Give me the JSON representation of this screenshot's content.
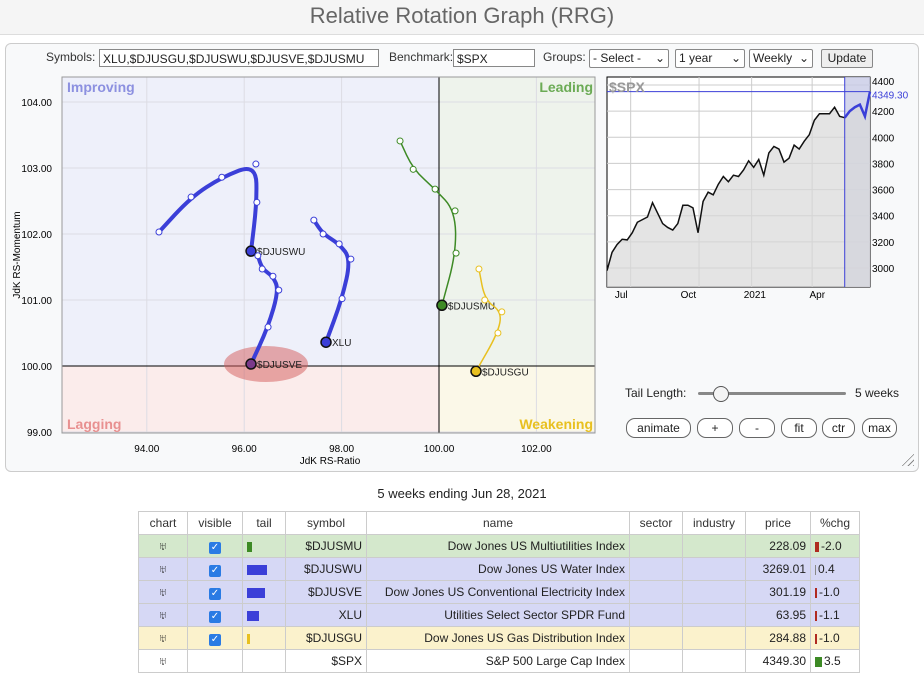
{
  "title": "Relative Rotation Graph (RRG)",
  "controls": {
    "symbols_label": "Symbols:",
    "symbols_value": "XLU,$DJUSGU,$DJUSWU,$DJUSVE,$DJUSMU",
    "benchmark_label": "Benchmark:",
    "benchmark_value": "$SPX",
    "groups_label": "Groups:",
    "groups_value": "- Select -",
    "period_value": "1 year",
    "interval_value": "Weekly",
    "update_label": "Update"
  },
  "rrg": {
    "quadrants": {
      "improving": "Improving",
      "leading": "Leading",
      "lagging": "Lagging",
      "weakening": "Weakening"
    },
    "xlabel": "JdK RS-Ratio",
    "ylabel": "JdK RS-Momentum",
    "xticks": [
      "94.00",
      "96.00",
      "98.00",
      "100.00",
      "102.00"
    ],
    "yticks": [
      "104.00",
      "103.00",
      "102.00",
      "101.00",
      "100.00",
      "99.00"
    ],
    "series": [
      {
        "name": "$DJUSWU",
        "color": "#3b3fd8",
        "width": 4,
        "points": [
          [
            94.25,
            102.03
          ],
          [
            94.91,
            102.56
          ],
          [
            95.54,
            102.86
          ],
          [
            96.24,
            103.06
          ],
          [
            96.26,
            102.48
          ],
          [
            96.14,
            101.74
          ]
        ]
      },
      {
        "name": "$DJUSVE",
        "color": "#3b3fd8",
        "width": 4,
        "points": [
          [
            96.28,
            101.67
          ],
          [
            96.37,
            101.47
          ],
          [
            96.59,
            101.36
          ],
          [
            96.71,
            101.15
          ],
          [
            96.49,
            100.59
          ],
          [
            96.14,
            100.03
          ]
        ],
        "headColor": "#7a3a8a",
        "highlight": true
      },
      {
        "name": "XLU",
        "color": "#3b3fd8",
        "width": 4,
        "points": [
          [
            97.43,
            102.21
          ],
          [
            97.62,
            102.0
          ],
          [
            97.95,
            101.85
          ],
          [
            98.19,
            101.62
          ],
          [
            98.01,
            101.02
          ],
          [
            97.68,
            100.36
          ]
        ]
      },
      {
        "name": "$DJUSMU",
        "color": "#3d8a25",
        "width": 1.5,
        "points": [
          [
            99.2,
            103.41
          ],
          [
            99.47,
            102.98
          ],
          [
            99.92,
            102.68
          ],
          [
            100.33,
            102.35
          ],
          [
            100.35,
            101.71
          ],
          [
            100.06,
            100.92
          ]
        ]
      },
      {
        "name": "$DJUSGU",
        "color": "#e8c020",
        "width": 1.5,
        "points": [
          [
            100.82,
            101.47
          ],
          [
            100.94,
            101.0
          ],
          [
            101.29,
            100.82
          ],
          [
            101.21,
            100.5
          ],
          [
            100.76,
            99.92
          ]
        ]
      }
    ]
  },
  "spx": {
    "label": "$SPX",
    "last": "4349.30",
    "yticks": [
      "4400",
      "4200",
      "4000",
      "3800",
      "3600",
      "3400",
      "3200",
      "3000"
    ],
    "xticks": [
      "Jul",
      "Oct",
      "2021",
      "Apr"
    ],
    "values": [
      2980,
      3120,
      3180,
      3220,
      3215,
      3270,
      3350,
      3370,
      3390,
      3500,
      3420,
      3340,
      3310,
      3290,
      3340,
      3480,
      3480,
      3460,
      3270,
      3510,
      3580,
      3560,
      3640,
      3700,
      3660,
      3710,
      3700,
      3750,
      3820,
      3770,
      3830,
      3710,
      3880,
      3930,
      3910,
      3810,
      3840,
      3940,
      3910,
      3970,
      4020,
      4130,
      4180,
      4180,
      4180,
      4230,
      4160,
      4150,
      4200,
      4230,
      4250,
      4160,
      4349
    ]
  },
  "tail": {
    "label": "Tail Length:",
    "value": "5 weeks",
    "fraction": 0.1
  },
  "buttons": [
    "animate",
    "+",
    "-",
    "fit",
    "ctr",
    "max"
  ],
  "caption": "5 weeks ending Jun 28, 2021",
  "table": {
    "headers": [
      "chart",
      "visible",
      "tail",
      "symbol",
      "name",
      "sector",
      "industry",
      "price",
      "%chg"
    ],
    "rows": [
      {
        "symbol": "$DJUSMU",
        "name": "Dow Jones US Multiutilities Index",
        "price": "228.09",
        "chg": "-2.0",
        "bg": "#d4e8cc",
        "tail": "#3d8a25",
        "tailw": 5,
        "visible": true,
        "chgColor": "#b02a20",
        "chgw": 4
      },
      {
        "symbol": "$DJUSWU",
        "name": "Dow Jones US Water Index",
        "price": "3269.01",
        "chg": "0.4",
        "bg": "#d6d8f5",
        "tail": "#3b3fd8",
        "tailw": 20,
        "visible": true,
        "chgColor": "#888",
        "chgw": 1
      },
      {
        "symbol": "$DJUSVE",
        "name": "Dow Jones US Conventional Electricity Index",
        "price": "301.19",
        "chg": "-1.0",
        "bg": "#d6d8f5",
        "tail": "#3b3fd8",
        "tailw": 18,
        "visible": true,
        "chgColor": "#b02a20",
        "chgw": 2
      },
      {
        "symbol": "XLU",
        "name": "Utilities Select Sector SPDR Fund",
        "price": "63.95",
        "chg": "-1.1",
        "bg": "#d6d8f5",
        "tail": "#3b3fd8",
        "tailw": 12,
        "visible": true,
        "chgColor": "#b02a20",
        "chgw": 2
      },
      {
        "symbol": "$DJUSGU",
        "name": "Dow Jones US Gas Distribution Index",
        "price": "284.88",
        "chg": "-1.0",
        "bg": "#fbf2cc",
        "tail": "#e8c020",
        "tailw": 3,
        "visible": true,
        "chgColor": "#b02a20",
        "chgw": 2
      },
      {
        "symbol": "$SPX",
        "name": "S&P 500 Large Cap Index",
        "price": "4349.30",
        "chg": "3.5",
        "bg": "#ffffff",
        "tail": "",
        "tailw": 0,
        "visible": false,
        "chgColor": "#3d8a25",
        "chgw": 7
      }
    ]
  }
}
